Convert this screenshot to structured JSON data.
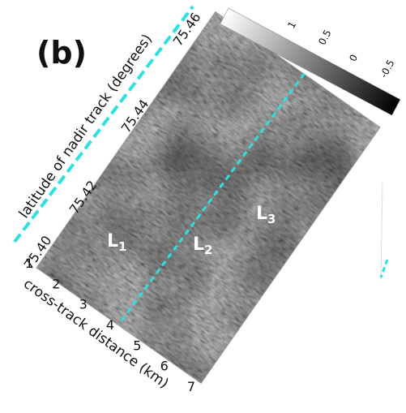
{
  "panel_label": "(b)",
  "x_axis": {
    "label": "cross-track distance (km)",
    "ticks": [
      1,
      2,
      3,
      4,
      5,
      6,
      7
    ]
  },
  "y_axis": {
    "label": "latitude of nadir track (degrees)",
    "ticks": [
      {
        "value": 75.4,
        "label": "75.40"
      },
      {
        "value": 75.42,
        "label": "75.42"
      },
      {
        "value": 75.44,
        "label": "75.44"
      },
      {
        "value": 75.46,
        "label": "75.46"
      }
    ]
  },
  "colorbar": {
    "ticks": [
      1,
      0.5,
      0,
      -0.5
    ]
  },
  "annotations": [
    {
      "text": "L",
      "subscript": "1"
    },
    {
      "text": "L",
      "subscript": "2"
    },
    {
      "text": "L",
      "subscript": "3"
    }
  ]
}
